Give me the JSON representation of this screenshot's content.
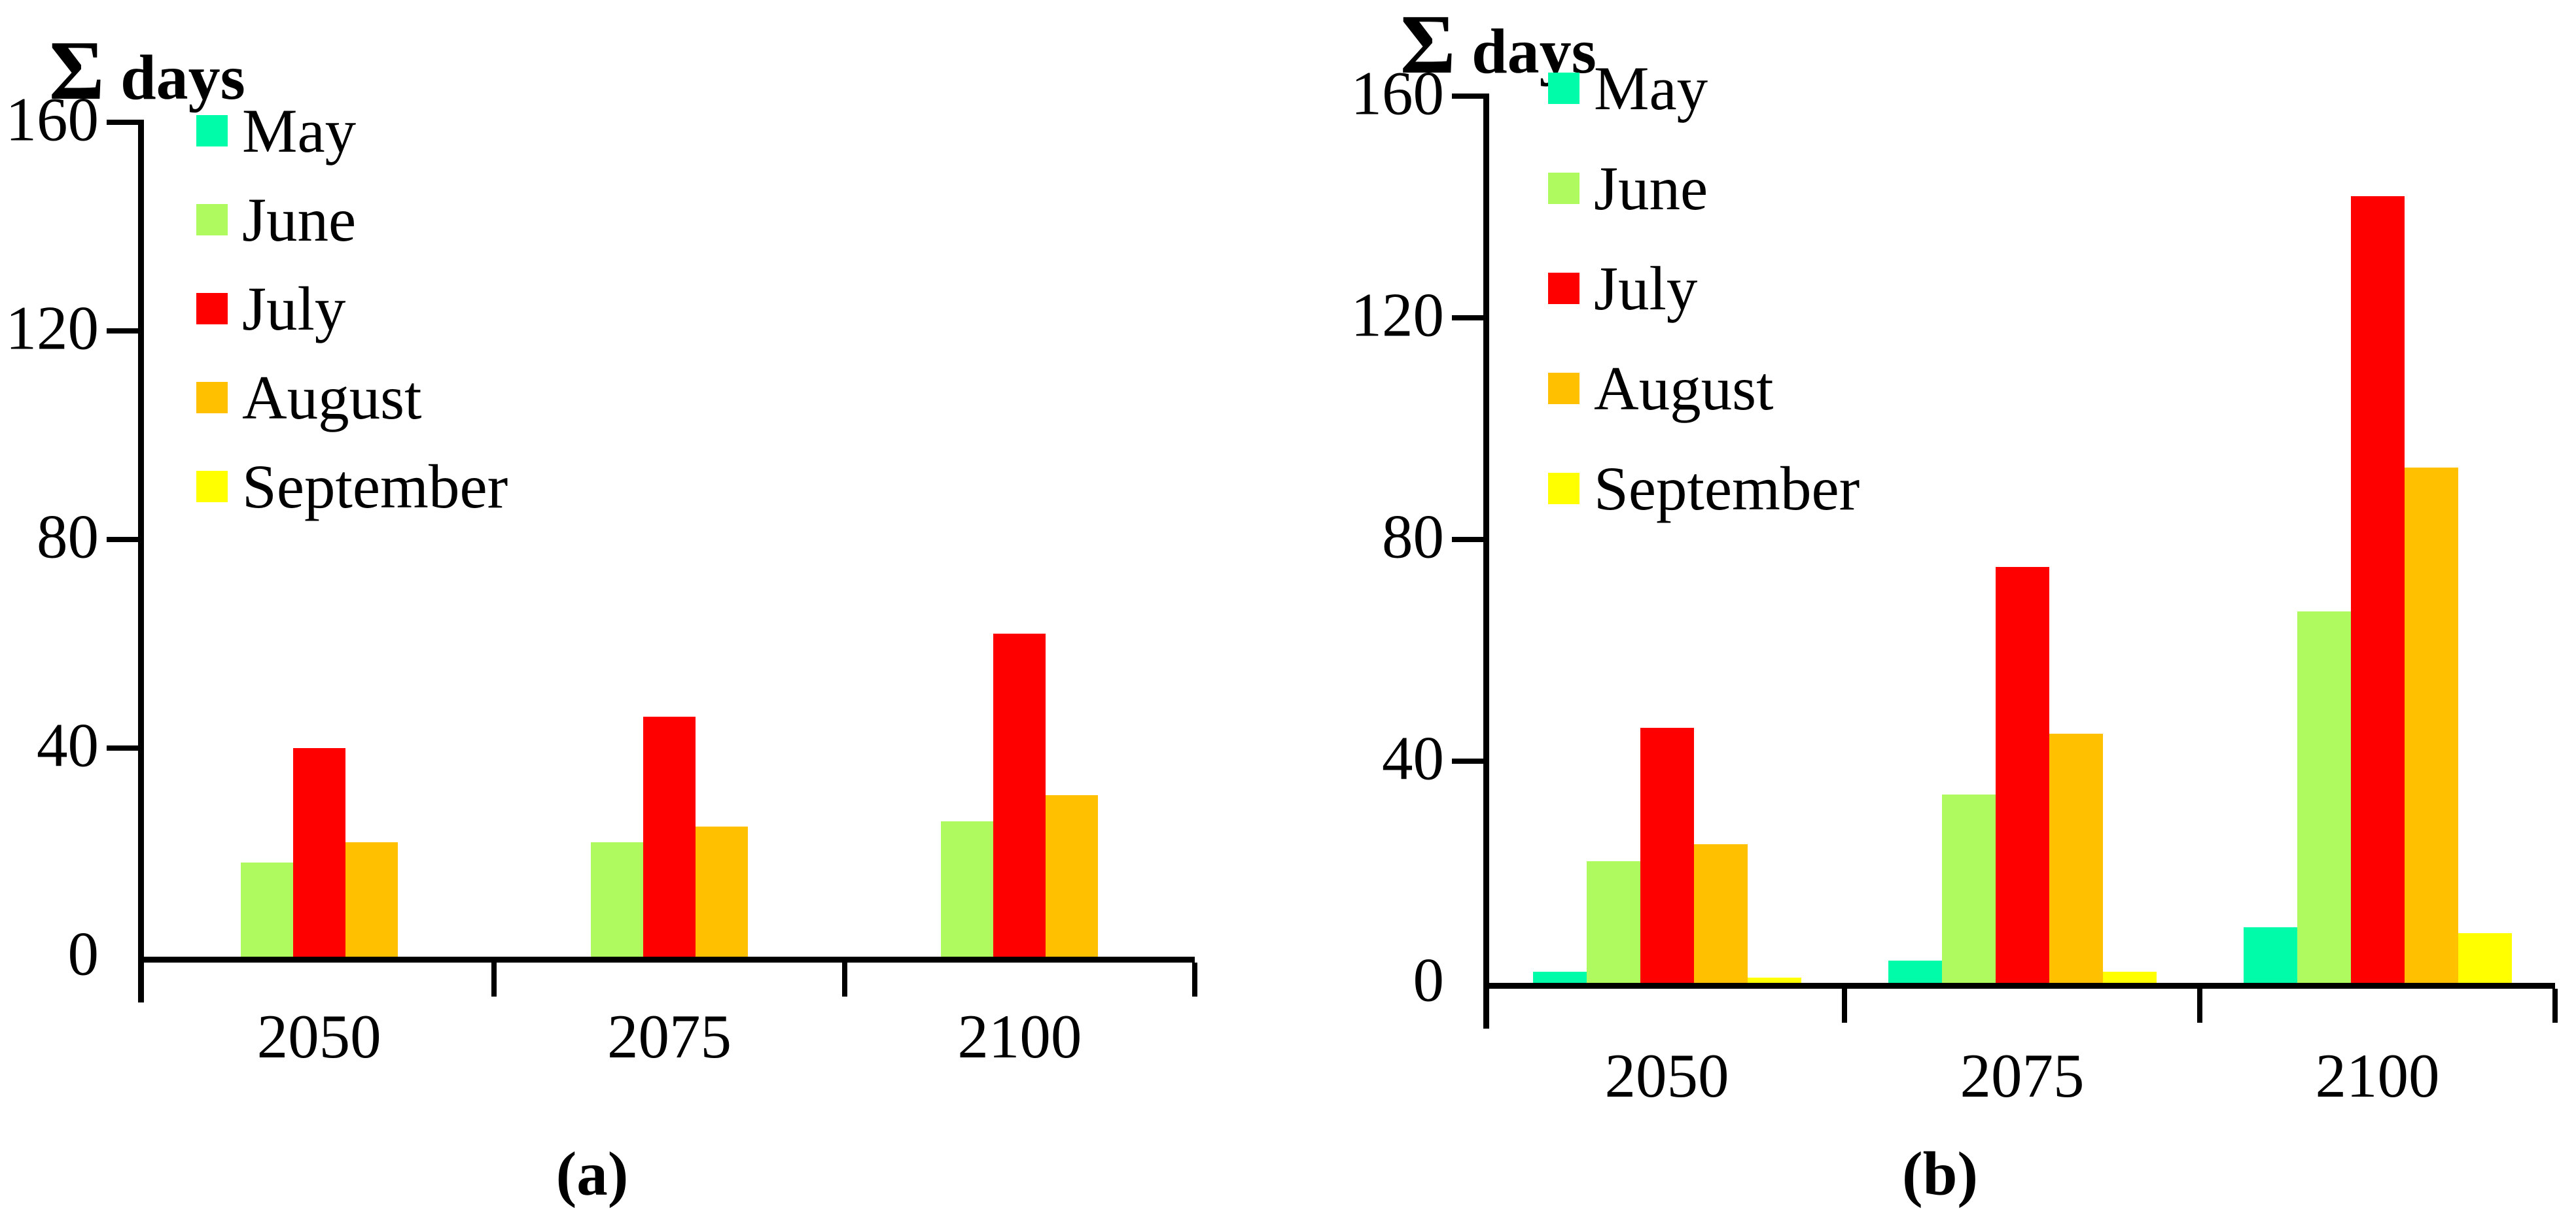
{
  "chart_data": [
    {
      "id": "a",
      "type": "bar",
      "title": "Σ days",
      "caption": "(a)",
      "ylabel": "Σ days",
      "xlabel": "",
      "categories": [
        "2050",
        "2075",
        "2100"
      ],
      "y_ticks": [
        "0",
        "40",
        "80",
        "120",
        "160"
      ],
      "ylim": [
        0,
        160
      ],
      "grid": false,
      "legend_position": "upper-left-inside",
      "series": [
        {
          "name": "May",
          "color": "#00FCA8",
          "values": [
            0,
            0,
            0
          ]
        },
        {
          "name": "June",
          "color": "#AFFA5F",
          "values": [
            18,
            22,
            26
          ]
        },
        {
          "name": "July",
          "color": "#FF0000",
          "values": [
            40,
            46,
            62
          ]
        },
        {
          "name": "August",
          "color": "#FFC000",
          "values": [
            22,
            25,
            31
          ]
        },
        {
          "name": "September",
          "color": "#FFFF00",
          "values": [
            0,
            0,
            0
          ]
        }
      ]
    },
    {
      "id": "b",
      "type": "bar",
      "title": "Σ days",
      "caption": "(b)",
      "ylabel": "Σ days",
      "xlabel": "",
      "categories": [
        "2050",
        "2075",
        "2100"
      ],
      "y_ticks": [
        "0",
        "40",
        "80",
        "120",
        "160"
      ],
      "ylim": [
        0,
        160
      ],
      "grid": false,
      "legend_position": "upper-left-inside",
      "series": [
        {
          "name": "May",
          "color": "#00FCA8",
          "values": [
            2,
            4,
            10
          ]
        },
        {
          "name": "June",
          "color": "#AFFA5F",
          "values": [
            22,
            34,
            67
          ]
        },
        {
          "name": "July",
          "color": "#FF0000",
          "values": [
            46,
            75,
            142
          ]
        },
        {
          "name": "August",
          "color": "#FFC000",
          "values": [
            25,
            45,
            93
          ]
        },
        {
          "name": "September",
          "color": "#FFFF00",
          "values": [
            1,
            2,
            9
          ]
        }
      ]
    }
  ]
}
